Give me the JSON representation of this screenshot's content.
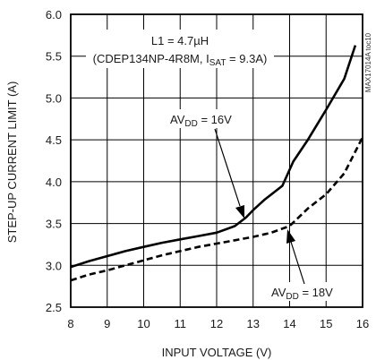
{
  "chart_data": {
    "type": "line",
    "side_id": "MAX17014A toc10",
    "xlabel": "INPUT VOLTAGE (V)",
    "ylabel": "STEP-UP CURRENT LIMIT (A)",
    "xlim": [
      8,
      16
    ],
    "ylim": [
      2.5,
      6.0
    ],
    "xticks": [
      8,
      9,
      10,
      11,
      12,
      13,
      14,
      15,
      16
    ],
    "yticks": [
      2.5,
      3.0,
      3.5,
      4.0,
      4.5,
      5.0,
      5.5,
      6.0
    ],
    "ytick_labels": [
      "2.5",
      "3.0",
      "3.5",
      "4.0",
      "4.5",
      "5.0",
      "5.5",
      "6.0"
    ],
    "grid": true,
    "annotations": {
      "inductor_line1": "L1 = 4.7µH",
      "inductor_line2_pre": "(CDEP134NP-4R8M, I",
      "inductor_line2_sub": "SAT",
      "inductor_line2_post": " = 9.3A)"
    },
    "series": [
      {
        "label_main": "AV",
        "label_sub": "DD",
        "label_post": " = 16V",
        "style": "solid",
        "x": [
          8.0,
          8.5,
          9.0,
          9.5,
          10.0,
          10.5,
          11.0,
          11.5,
          12.0,
          12.5,
          12.8,
          13.0,
          13.3,
          13.8,
          14.1,
          14.5,
          15.0,
          15.5,
          15.8
        ],
        "y": [
          2.98,
          3.05,
          3.11,
          3.17,
          3.22,
          3.27,
          3.31,
          3.35,
          3.39,
          3.47,
          3.57,
          3.66,
          3.78,
          3.95,
          4.24,
          4.5,
          4.86,
          5.23,
          5.63
        ]
      },
      {
        "label_main": "AV",
        "label_sub": "DD",
        "label_post": " = 18V",
        "style": "dashed",
        "x": [
          8.0,
          8.5,
          9.0,
          9.5,
          10.0,
          10.5,
          11.0,
          11.5,
          12.0,
          12.5,
          13.0,
          13.5,
          14.0,
          14.5,
          15.0,
          15.5,
          16.0
        ],
        "y": [
          2.82,
          2.89,
          2.94,
          3.0,
          3.06,
          3.12,
          3.17,
          3.22,
          3.26,
          3.3,
          3.34,
          3.39,
          3.47,
          3.68,
          3.85,
          4.1,
          4.53
        ]
      }
    ]
  }
}
